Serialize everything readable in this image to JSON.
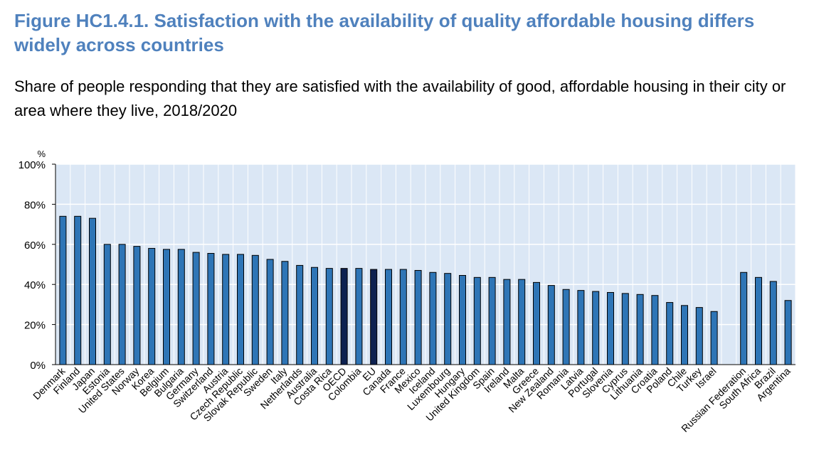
{
  "title": "Figure  HC1.4.1. Satisfaction with the availability of quality affordable housing differs widely across countries",
  "subtitle": "Share of people responding that they are satisfied with the availability of good, affordable housing in their city or area where they live, 2018/2020",
  "colors": {
    "bar": "#2e75b6",
    "bar_highlight": "#0d2150",
    "bar_outline": "#000000",
    "plot_bg": "#dbe7f5",
    "gridline": "#ffffff",
    "title": "#4f81bd"
  },
  "chart_data": {
    "type": "bar",
    "ylabel": "%",
    "ylim": [
      0,
      100
    ],
    "yticks": [
      0,
      20,
      40,
      60,
      80,
      100
    ],
    "ytick_labels": [
      "0%",
      "20%",
      "40%",
      "60%",
      "80%",
      "100%"
    ],
    "categories": [
      "Denmark",
      "Finland",
      "Japan",
      "Estonia",
      "United States",
      "Norway",
      "Korea",
      "Belgium",
      "Bulgaria",
      "Germany",
      "Switzerland",
      "Austria",
      "Czech Republic",
      "Slovak Republic",
      "Sweden",
      "Italy",
      "Netherlands",
      "Australia",
      "Costa Rica",
      "OECD",
      "Colombia",
      "EU",
      "Canada",
      "France",
      "Mexico",
      "Iceland",
      "Luxembourg",
      "Hungary",
      "United Kingdom",
      "Spain",
      "Ireland",
      "Malta",
      "Greece",
      "New Zealand",
      "Romania",
      "Latvia",
      "Portugal",
      "Slovenia",
      "Cyprus",
      "Lithuania",
      "Croatia",
      "Poland",
      "Chile",
      "Turkey",
      "Israel",
      "",
      "Russian Federation",
      "South Africa",
      "Brazil",
      "Argentina"
    ],
    "values": [
      74,
      74,
      73,
      60,
      60,
      59,
      58,
      57.5,
      57.5,
      56,
      55.5,
      55,
      55,
      54.5,
      52.5,
      51.5,
      49.5,
      48.5,
      48,
      48,
      48,
      47.5,
      47.5,
      47.5,
      47,
      46,
      45.5,
      44.5,
      43.5,
      43.5,
      42.5,
      42.5,
      41,
      39.5,
      37.5,
      37,
      36.5,
      36,
      35.5,
      35,
      34.5,
      31,
      29.5,
      28.5,
      26.5,
      null,
      46,
      43.5,
      41.5,
      32
    ],
    "highlighted": [
      "OECD",
      "EU"
    ]
  }
}
